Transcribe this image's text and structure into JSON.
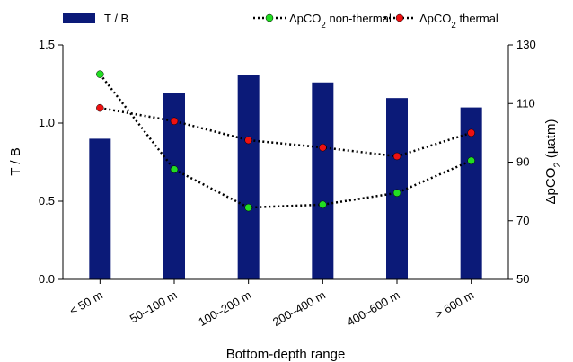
{
  "chart_data": {
    "type": "bar",
    "categories": [
      "< 50 m",
      "50–100 m",
      "100–200 m",
      "200–400 m",
      "400–600 m",
      "> 600 m"
    ],
    "series": [
      {
        "name": "T / B",
        "type": "bar",
        "axis": "left",
        "values": [
          0.9,
          1.19,
          1.31,
          1.26,
          1.16,
          1.1
        ],
        "color": "#0b1a78"
      },
      {
        "name": "ΔpCO2 non-thermal",
        "type": "line",
        "axis": "right",
        "values": [
          120,
          87.5,
          74.5,
          75.5,
          79.5,
          90.5
        ],
        "color": "#22dd22"
      },
      {
        "name": "ΔpCO2 thermal",
        "type": "line",
        "axis": "right",
        "values": [
          108.5,
          104,
          97.5,
          95,
          92,
          100
        ],
        "color": "#ee1111"
      }
    ],
    "xlabel": "Bottom-depth range",
    "ylabel_left": "T / B",
    "ylabel_right": "ΔpCO2 (µatm)",
    "ylim_left": [
      0,
      1.5
    ],
    "yticks_left": [
      "0.0",
      "0.5",
      "1.0",
      "1.5"
    ],
    "ylim_right": [
      50,
      130
    ],
    "yticks_right": [
      "50",
      "70",
      "90",
      "110",
      "130"
    ],
    "legend_position": "top",
    "grid": false
  }
}
